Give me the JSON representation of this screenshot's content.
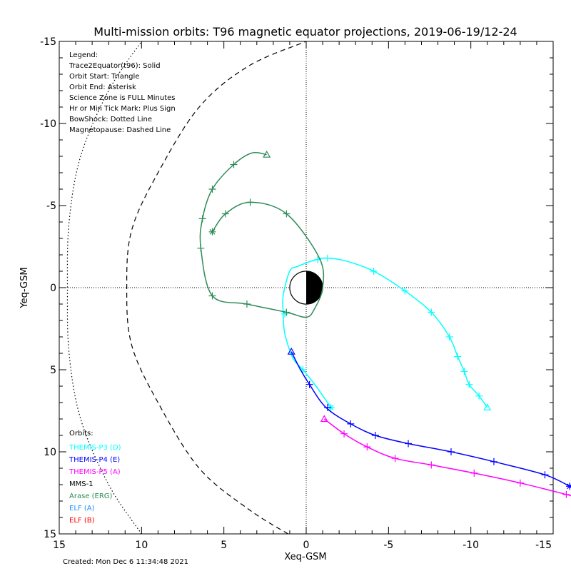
{
  "chart_data": {
    "type": "line",
    "title": "Multi-mission orbits: T96 magnetic equator projections, 2019-06-19/12-24",
    "xlabel": "Xeq-GSM",
    "ylabel": "Yeq-GSM",
    "xlim": [
      15,
      -15
    ],
    "ylim": [
      15,
      -15
    ],
    "xticks": [
      "15",
      "10",
      "5",
      "0",
      "-5",
      "-10",
      "-15"
    ],
    "yticks": [
      "-15",
      "-10",
      "-5",
      "0",
      "5",
      "10",
      "15"
    ],
    "legend_lines": [
      "Legend:",
      "Trace2Equator(t96): Solid",
      "Orbit Start: Triangle",
      "Orbit End: Asterisk",
      "Science Zone is FULL Minutes",
      "Hr or Min Tick Mark: Plus Sign",
      "BowShock: Dotted Line",
      "Magnetopause: Dashed Line"
    ],
    "orbits_header": "Orbits:",
    "orbits_legend": [
      {
        "label": "THEMIS-P3 (D)",
        "color": "#00ffff"
      },
      {
        "label": "THEMIS-P4 (E)",
        "color": "#0000ff"
      },
      {
        "label": "THEMIS-P5 (A)",
        "color": "#ff00ff"
      },
      {
        "label": "MMS-1",
        "color": "#000000"
      },
      {
        "label": "Arase (ERG)",
        "color": "#2e8b57"
      },
      {
        "label": "ELF (A)",
        "color": "#1e90ff"
      },
      {
        "label": "ELF (B)",
        "color": "#ff0000"
      }
    ],
    "created": "Created: Mon Dec  6 11:34:48 2021",
    "earth": {
      "radius": 1
    },
    "bow_shock": [
      [
        10,
        15
      ],
      [
        12,
        12
      ],
      [
        13.7,
        8
      ],
      [
        14.4,
        4
      ],
      [
        14.5,
        0
      ],
      [
        14.4,
        -4
      ],
      [
        13.7,
        -8
      ],
      [
        12,
        -12
      ],
      [
        10,
        -15
      ]
    ],
    "magnetopause": [
      [
        1.1,
        15
      ],
      [
        3.5,
        13.5
      ],
      [
        6.5,
        11
      ],
      [
        9,
        7
      ],
      [
        10.6,
        3.5
      ],
      [
        10.9,
        0
      ],
      [
        10.6,
        -3.5
      ],
      [
        9,
        -7
      ],
      [
        6.5,
        -11
      ],
      [
        3.5,
        -13.5
      ],
      [
        0,
        -15
      ]
    ],
    "series": [
      {
        "name": "THEMIS-P3 (D)",
        "color": "#00ffff",
        "start": [
          -11,
          7.3
        ],
        "end": [
          -1.5,
          7.3
        ],
        "points": [
          [
            -11,
            7.3
          ],
          [
            -10.5,
            6.6
          ],
          [
            -9.9,
            5.9
          ],
          [
            -9.6,
            5.1
          ],
          [
            -9.2,
            4.2
          ],
          [
            -8.7,
            3
          ],
          [
            -7.6,
            1.5
          ],
          [
            -6,
            0.2
          ],
          [
            -4.1,
            -1
          ],
          [
            -2.5,
            -1.6
          ],
          [
            -1.3,
            -1.8
          ],
          [
            -0.6,
            -1.7
          ],
          [
            0.5,
            -1.3
          ],
          [
            1,
            -1
          ],
          [
            1.4,
            0.5
          ],
          [
            1.4,
            1.5
          ],
          [
            1.3,
            2.8
          ],
          [
            0.8,
            4.3
          ],
          [
            0.2,
            5
          ],
          [
            -0.6,
            6
          ],
          [
            -1.5,
            7.3
          ]
        ],
        "ticks": [
          [
            -10.5,
            6.6
          ],
          [
            -9.9,
            5.9
          ],
          [
            -9.6,
            5.1
          ],
          [
            -9.2,
            4.2
          ],
          [
            -8.7,
            3
          ],
          [
            -7.6,
            1.5
          ],
          [
            -6,
            0.2
          ],
          [
            -4.1,
            -1
          ],
          [
            -1.3,
            -1.8
          ],
          [
            -0.7,
            -1.7
          ],
          [
            1.3,
            1.6
          ],
          [
            0.2,
            5
          ]
        ]
      },
      {
        "name": "THEMIS-P4 (E)",
        "color": "#0000ff",
        "start": [
          0.9,
          3.9
        ],
        "end": [
          -16,
          12.1
        ],
        "points": [
          [
            0.9,
            3.9
          ],
          [
            0.4,
            4.9
          ],
          [
            -0.2,
            5.9
          ],
          [
            -1.2,
            7.3
          ],
          [
            -2.7,
            8.3
          ],
          [
            -4.2,
            9
          ],
          [
            -6.2,
            9.5
          ],
          [
            -8.8,
            10
          ],
          [
            -11.4,
            10.6
          ],
          [
            -14.5,
            11.4
          ],
          [
            -16,
            12.1
          ]
        ],
        "ticks": [
          [
            -0.2,
            5.9
          ],
          [
            -1.3,
            7.3
          ],
          [
            -2.7,
            8.3
          ],
          [
            -4.2,
            9
          ],
          [
            -6.2,
            9.5
          ],
          [
            -8.8,
            10
          ],
          [
            -11.4,
            10.6
          ],
          [
            -14.5,
            11.4
          ]
        ]
      },
      {
        "name": "THEMIS-P5 (A)",
        "color": "#ff00ff",
        "start": [
          -1.1,
          8
        ],
        "end": [
          -16.5,
          12.8
        ],
        "points": [
          [
            -1.1,
            8
          ],
          [
            -2.3,
            8.9
          ],
          [
            -3.7,
            9.7
          ],
          [
            -5.4,
            10.4
          ],
          [
            -7.6,
            10.8
          ],
          [
            -10.2,
            11.3
          ],
          [
            -13,
            11.9
          ],
          [
            -15.8,
            12.6
          ],
          [
            -16.5,
            12.8
          ]
        ],
        "ticks": [
          [
            -2.3,
            8.9
          ],
          [
            -3.7,
            9.7
          ],
          [
            -5.4,
            10.4
          ],
          [
            -7.6,
            10.8
          ],
          [
            -10.2,
            11.3
          ],
          [
            -13,
            11.9
          ],
          [
            -15.8,
            12.6
          ]
        ]
      },
      {
        "name": "Arase (ERG)",
        "color": "#2e8b57",
        "start": [
          2.4,
          -8.1
        ],
        "end": [
          5.7,
          -3.4
        ],
        "points": [
          [
            2.4,
            -8.1
          ],
          [
            3.3,
            -8.2
          ],
          [
            4.4,
            -7.5
          ],
          [
            5.7,
            -6
          ],
          [
            6.3,
            -4.2
          ],
          [
            6.4,
            -2.4
          ],
          [
            5.7,
            0.5
          ],
          [
            3.6,
            1
          ],
          [
            1.2,
            1.5
          ],
          [
            0,
            1.8
          ],
          [
            -0.5,
            1.3
          ],
          [
            -1,
            0
          ],
          [
            -0.8,
            -1.8
          ],
          [
            1.2,
            -4.5
          ],
          [
            3.4,
            -5.2
          ],
          [
            4.9,
            -4.5
          ],
          [
            5.7,
            -3.4
          ]
        ],
        "ticks": [
          [
            4.4,
            -7.5
          ],
          [
            5.7,
            -6
          ],
          [
            6.3,
            -4.2
          ],
          [
            6.4,
            -2.4
          ],
          [
            5.7,
            0.5
          ],
          [
            3.6,
            1
          ],
          [
            1.2,
            1.5
          ],
          [
            1.2,
            -4.5
          ],
          [
            3.4,
            -5.2
          ],
          [
            4.9,
            -4.5
          ]
        ]
      }
    ]
  }
}
